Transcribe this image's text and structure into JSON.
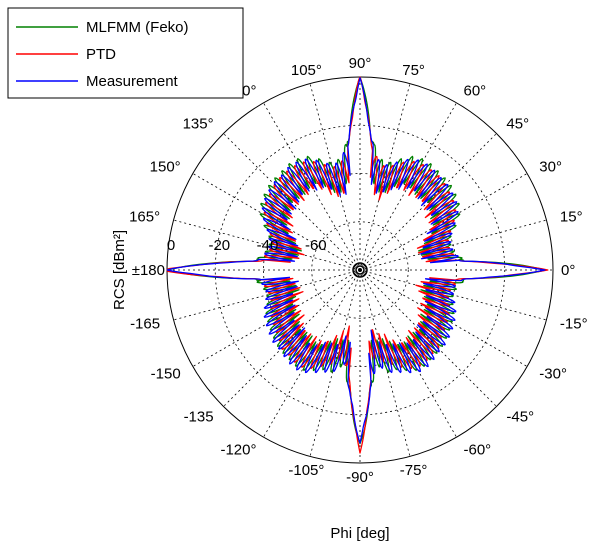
{
  "chart_data": {
    "type": "polar-line",
    "xlabel": "Phi [deg]",
    "ylabel": "RCS [dBm²]",
    "rlim": [
      -80,
      0
    ],
    "radial_ticks": [
      {
        "value": 0,
        "label": "0"
      },
      {
        "value": -20,
        "label": "-20"
      },
      {
        "value": -40,
        "label": "-40"
      },
      {
        "value": -60,
        "label": "-60"
      }
    ],
    "angle_ticks": [
      {
        "deg": 0,
        "label": "0°"
      },
      {
        "deg": 15,
        "label": "15°"
      },
      {
        "deg": 30,
        "label": "30°"
      },
      {
        "deg": 45,
        "label": "45°"
      },
      {
        "deg": 60,
        "label": "60°"
      },
      {
        "deg": 75,
        "label": "75°"
      },
      {
        "deg": 90,
        "label": "90°"
      },
      {
        "deg": 105,
        "label": "105°"
      },
      {
        "deg": 120,
        "label": "120°"
      },
      {
        "deg": 135,
        "label": "135°"
      },
      {
        "deg": 150,
        "label": "150°"
      },
      {
        "deg": 165,
        "label": "165°"
      },
      {
        "deg": 180,
        "label": "±180"
      },
      {
        "deg": -165,
        "label": "-165"
      },
      {
        "deg": -150,
        "label": "-150"
      },
      {
        "deg": -135,
        "label": "-135"
      },
      {
        "deg": -120,
        "label": "-120°"
      },
      {
        "deg": -105,
        "label": "-105°"
      },
      {
        "deg": -90,
        "label": "-90°"
      },
      {
        "deg": -75,
        "label": "-75°"
      },
      {
        "deg": -60,
        "label": "-60°"
      },
      {
        "deg": -45,
        "label": "-45°"
      },
      {
        "deg": -30,
        "label": "-30°"
      },
      {
        "deg": -15,
        "label": "-15°"
      }
    ],
    "grid": true,
    "legend_position": "top-left",
    "series": [
      {
        "name": "MLFMM (Feko)",
        "color": "#008000",
        "phi": [
          -180,
          -175,
          -170,
          -165,
          -160,
          -155,
          -150,
          -145,
          -140,
          -135,
          -130,
          -125,
          -120,
          -115,
          -110,
          -105,
          -100,
          -95,
          -90,
          -85,
          -80,
          -75,
          -70,
          -65,
          -60,
          -55,
          -50,
          -45,
          -40,
          -35,
          -30,
          -25,
          -20,
          -15,
          -10,
          -5,
          0,
          5,
          10,
          15,
          20,
          25,
          30,
          35,
          40,
          45,
          50,
          55,
          60,
          65,
          70,
          75,
          80,
          85,
          90,
          95,
          100,
          105,
          110,
          115,
          120,
          125,
          130,
          135,
          140,
          145,
          150,
          155,
          160,
          165,
          170,
          175,
          180
        ],
        "rcs": [
          2,
          -36,
          -39,
          -40,
          -39,
          -37,
          -36,
          -35,
          -34,
          -33,
          -33,
          -32,
          -32,
          -34,
          -36,
          -36,
          -40,
          -30,
          -6,
          -30,
          -40,
          -36,
          -36,
          -34,
          -32,
          -32,
          -33,
          -33,
          -34,
          -35,
          -36,
          -37,
          -39,
          -40,
          -39,
          -36,
          -1,
          -36,
          -40,
          -41,
          -40,
          -36,
          -32,
          -30,
          -29,
          -28,
          -28,
          -27,
          -27,
          -28,
          -31,
          -34,
          -33,
          -25,
          2,
          -25,
          -33,
          -34,
          -31,
          -28,
          -27,
          -27,
          -28,
          -28,
          -29,
          -30,
          -32,
          -36,
          -40,
          -41,
          -40,
          -36,
          2
        ]
      },
      {
        "name": "PTD",
        "color": "#ff0000",
        "phi": [
          -180,
          -175,
          -170,
          -165,
          -160,
          -155,
          -150,
          -145,
          -140,
          -135,
          -130,
          -125,
          -120,
          -115,
          -110,
          -105,
          -100,
          -95,
          -90,
          -85,
          -80,
          -75,
          -70,
          -65,
          -60,
          -55,
          -50,
          -45,
          -40,
          -35,
          -30,
          -25,
          -20,
          -15,
          -10,
          -5,
          0,
          5,
          10,
          15,
          20,
          25,
          30,
          35,
          40,
          45,
          50,
          55,
          60,
          65,
          70,
          75,
          80,
          85,
          90,
          95,
          100,
          105,
          110,
          115,
          120,
          125,
          130,
          135,
          140,
          145,
          150,
          155,
          160,
          165,
          170,
          175,
          180
        ],
        "rcs": [
          3,
          -38,
          -40,
          -41,
          -41,
          -39,
          -38,
          -37,
          -36,
          -34,
          -34,
          -33,
          -33,
          -35,
          -38,
          -40,
          -44,
          -32,
          -4,
          -32,
          -44,
          -40,
          -38,
          -35,
          -33,
          -33,
          -34,
          -34,
          -36,
          -37,
          -38,
          -39,
          -41,
          -42,
          -41,
          -38,
          -2,
          -38,
          -41,
          -42,
          -41,
          -38,
          -34,
          -32,
          -31,
          -30,
          -29,
          -29,
          -29,
          -30,
          -33,
          -36,
          -35,
          -27,
          1,
          -27,
          -35,
          -36,
          -33,
          -30,
          -29,
          -29,
          -29,
          -30,
          -31,
          -32,
          -34,
          -38,
          -41,
          -42,
          -41,
          -38,
          3
        ]
      },
      {
        "name": "Measurement",
        "color": "#0000ff",
        "phi": [
          -180,
          -175,
          -170,
          -165,
          -160,
          -155,
          -150,
          -145,
          -140,
          -135,
          -130,
          -125,
          -120,
          -115,
          -110,
          -105,
          -100,
          -95,
          -90,
          -85,
          -80,
          -75,
          -70,
          -65,
          -60,
          -55,
          -50,
          -45,
          -40,
          -35,
          -30,
          -25,
          -20,
          -15,
          -10,
          -5,
          0,
          5,
          10,
          15,
          20,
          25,
          30,
          35,
          40,
          45,
          50,
          55,
          60,
          65,
          70,
          75,
          80,
          85,
          90,
          95,
          100,
          105,
          110,
          115,
          120,
          125,
          130,
          135,
          140,
          145,
          150,
          155,
          160,
          165,
          170,
          175,
          180
        ],
        "rcs": [
          1,
          -37,
          -40,
          -40,
          -38,
          -36,
          -35,
          -34,
          -33,
          -33,
          -32,
          -31,
          -31,
          -33,
          -35,
          -36,
          -41,
          -30,
          -8,
          -30,
          -41,
          -36,
          -35,
          -33,
          -31,
          -31,
          -32,
          -33,
          -33,
          -34,
          -35,
          -36,
          -38,
          -40,
          -40,
          -37,
          -3,
          -37,
          -40,
          -41,
          -40,
          -37,
          -33,
          -31,
          -30,
          -29,
          -29,
          -28,
          -28,
          -29,
          -32,
          -35,
          -34,
          -26,
          0,
          -26,
          -34,
          -35,
          -32,
          -29,
          -28,
          -28,
          -29,
          -29,
          -30,
          -31,
          -33,
          -37,
          -40,
          -41,
          -40,
          -37,
          1
        ]
      }
    ]
  }
}
